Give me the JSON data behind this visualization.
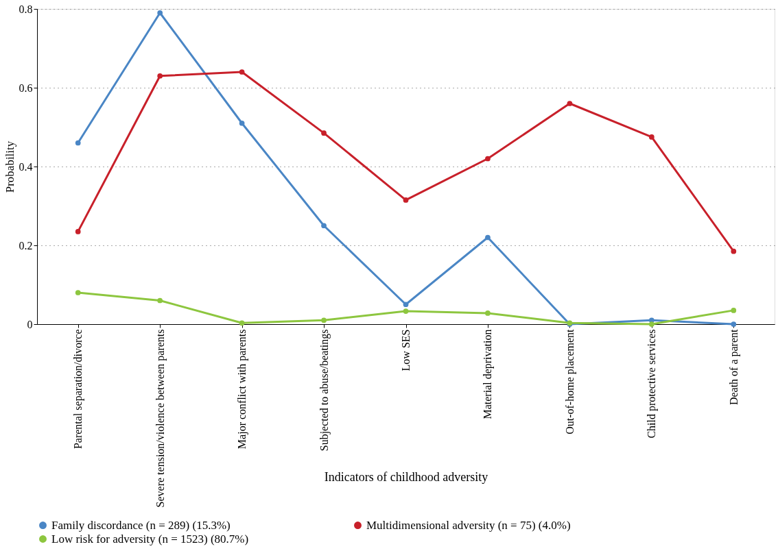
{
  "chart_data": {
    "type": "line",
    "xlabel": "Indicators of childhood adversity",
    "ylabel": "Probability",
    "categories": [
      "Parental separation/divorce",
      "Severe tension/violence between parents",
      "Major conflict with parents",
      "Subjected to abuse/beatings",
      "Low SES",
      "Material deprivation",
      "Out-of-home placement",
      "Child protective services",
      "Death of a parent"
    ],
    "series": [
      {
        "name": "Family discordance (n = 289) (15.3%)",
        "color": "#4a86c5",
        "values": [
          0.46,
          0.79,
          0.51,
          0.25,
          0.05,
          0.22,
          0.0,
          0.01,
          0.0
        ]
      },
      {
        "name": "Multidimensional adversity (n = 75) (4.0%)",
        "color": "#c8202a",
        "values": [
          0.235,
          0.63,
          0.64,
          0.485,
          0.315,
          0.42,
          0.56,
          0.475,
          0.185
        ]
      },
      {
        "name": "Low risk for adversity (n = 1523) (80.7%)",
        "color": "#8dc63f",
        "values": [
          0.08,
          0.06,
          0.003,
          0.01,
          0.033,
          0.028,
          0.003,
          0.0,
          0.035
        ]
      }
    ],
    "ylim": [
      0,
      0.8
    ],
    "yticks": [
      0,
      0.2,
      0.4,
      0.6,
      0.8
    ],
    "grid": "y",
    "legend": "bottom",
    "marker": "circle",
    "line_style": "solid"
  }
}
